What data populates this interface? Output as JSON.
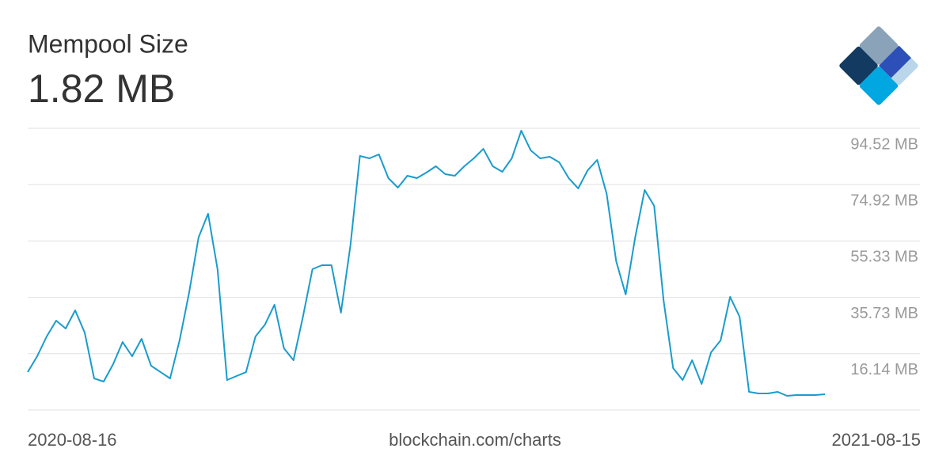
{
  "chart_data": {
    "type": "line",
    "title": "Mempool Size",
    "subtitle": "1.82 MB",
    "source": "blockchain.com/charts",
    "color": "#1a9ccc",
    "grid": true,
    "ylim": [
      -3.455,
      94.52
    ],
    "yticks": [
      {
        "value": 16.14,
        "label": "16.14 MB"
      },
      {
        "value": 35.73,
        "label": "35.73 MB"
      },
      {
        "value": 55.33,
        "label": "55.33 MB"
      },
      {
        "value": 74.92,
        "label": "74.92 MB"
      },
      {
        "value": 94.52,
        "label": "94.52 MB"
      }
    ],
    "categories": [
      "2020-08-16",
      null,
      null,
      null,
      null,
      null,
      null,
      null,
      null,
      null,
      null,
      null,
      null,
      null,
      null,
      null,
      null,
      null,
      null,
      null,
      null,
      null,
      null,
      null,
      null,
      null,
      null,
      null,
      null,
      null,
      null,
      null,
      null,
      null,
      null,
      null,
      null,
      null,
      null,
      null,
      null,
      null,
      null,
      null,
      null,
      null,
      null,
      null,
      null,
      null,
      null,
      null,
      null,
      null,
      null,
      null,
      null,
      null,
      null,
      null,
      null,
      null,
      null,
      null,
      null,
      null,
      null,
      null,
      null,
      null,
      null,
      null,
      null,
      null,
      null,
      null,
      null,
      null,
      null,
      null,
      null,
      null,
      null,
      null,
      null,
      null,
      null,
      null,
      null,
      null,
      null,
      null,
      null,
      null,
      "2021-08-15"
    ],
    "values": [
      9.75,
      15.26,
      22.14,
      27.64,
      24.89,
      31.22,
      23.52,
      7.55,
      6.45,
      12.51,
      20.21,
      15.26,
      21.31,
      11.96,
      9.75,
      7.55,
      20.76,
      37.28,
      56.54,
      64.8,
      45.53,
      7.0,
      8.38,
      9.75,
      22.14,
      26.27,
      33.15,
      18.01,
      13.88,
      29.02,
      45.53,
      46.91,
      46.91,
      30.4,
      53.79,
      84.89,
      84.06,
      85.44,
      77.18,
      73.88,
      78.01,
      77.18,
      79.11,
      81.31,
      78.56,
      78.01,
      81.31,
      84.06,
      87.36,
      81.31,
      79.38,
      84.06,
      93.69,
      86.81,
      84.06,
      84.61,
      82.69,
      77.18,
      73.6,
      79.93,
      83.51,
      71.68,
      48.28,
      36.73,
      56.54,
      73.05,
      67.55,
      34.52,
      11.13,
      7.0,
      13.88,
      5.63,
      16.63,
      20.76,
      35.9,
      29.02,
      2.88,
      2.32,
      2.32,
      2.88,
      1.5,
      1.77,
      1.77,
      1.77,
      2.05,
      null,
      null,
      null,
      null,
      null,
      null,
      null,
      null,
      null,
      null
    ]
  }
}
